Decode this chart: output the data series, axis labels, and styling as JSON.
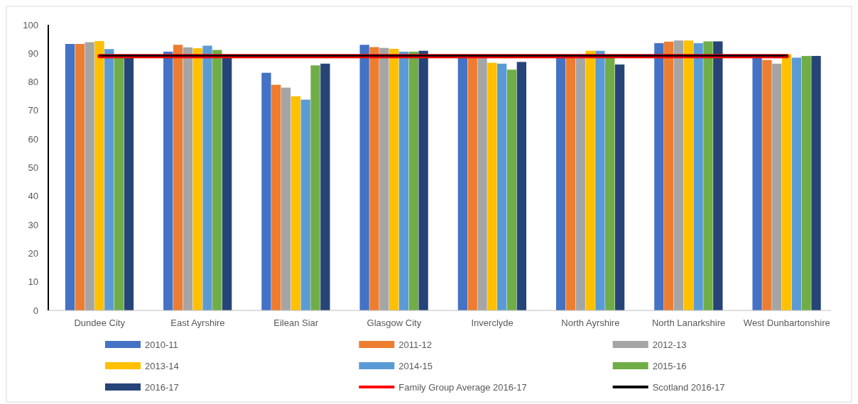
{
  "chart_data": {
    "type": "bar",
    "categories": [
      "Dundee City",
      "East Ayrshire",
      "Eilean Siar",
      "Glasgow City",
      "Inverclyde",
      "North Ayrshire",
      "North Lanarkshire",
      "West Dunbartonshire"
    ],
    "series": [
      {
        "name": "2010-11",
        "color": "#4472c4",
        "values": [
          93.3,
          90.6,
          83.2,
          93.0,
          89.0,
          89.0,
          93.6,
          89.0
        ]
      },
      {
        "name": "2011-12",
        "color": "#ed7d31",
        "values": [
          93.3,
          93.0,
          79.0,
          92.2,
          89.0,
          89.0,
          94.1,
          87.7
        ]
      },
      {
        "name": "2012-13",
        "color": "#a5a5a5",
        "values": [
          93.9,
          92.1,
          78.0,
          91.9,
          89.0,
          89.0,
          94.5,
          86.4
        ]
      },
      {
        "name": "2013-14",
        "color": "#ffc000",
        "values": [
          94.3,
          91.8,
          75.0,
          91.6,
          86.7,
          90.9,
          94.5,
          89.7
        ]
      },
      {
        "name": "2014-15",
        "color": "#5b9bd5",
        "values": [
          91.5,
          92.7,
          73.8,
          90.6,
          86.4,
          90.9,
          93.6,
          88.5
        ]
      },
      {
        "name": "2015-16",
        "color": "#70ad47",
        "values": [
          89.0,
          91.2,
          85.8,
          90.6,
          84.3,
          89.0,
          94.2,
          89.1
        ]
      },
      {
        "name": "2016-17",
        "color": "#264478",
        "values": [
          89.0,
          89.0,
          86.4,
          90.9,
          87.0,
          86.1,
          94.2,
          89.1
        ]
      },
      {
        "name": "Family Group Average 2016-17",
        "type": "line",
        "color": "#ff0000",
        "values": [
          89.0,
          89.0,
          89.0,
          89.0,
          89.0,
          89.0,
          89.0,
          89.0
        ]
      },
      {
        "name": "Scotland 2016-17",
        "type": "line",
        "color": "#000000",
        "values": [
          89.2,
          89.2,
          89.2,
          89.2,
          89.2,
          89.2,
          89.2,
          89.2
        ]
      }
    ],
    "ylim": [
      0,
      100
    ],
    "yticks": [
      0,
      10,
      20,
      30,
      40,
      50,
      60,
      70,
      80,
      90,
      100
    ],
    "grid": false,
    "legend": "bottom"
  }
}
